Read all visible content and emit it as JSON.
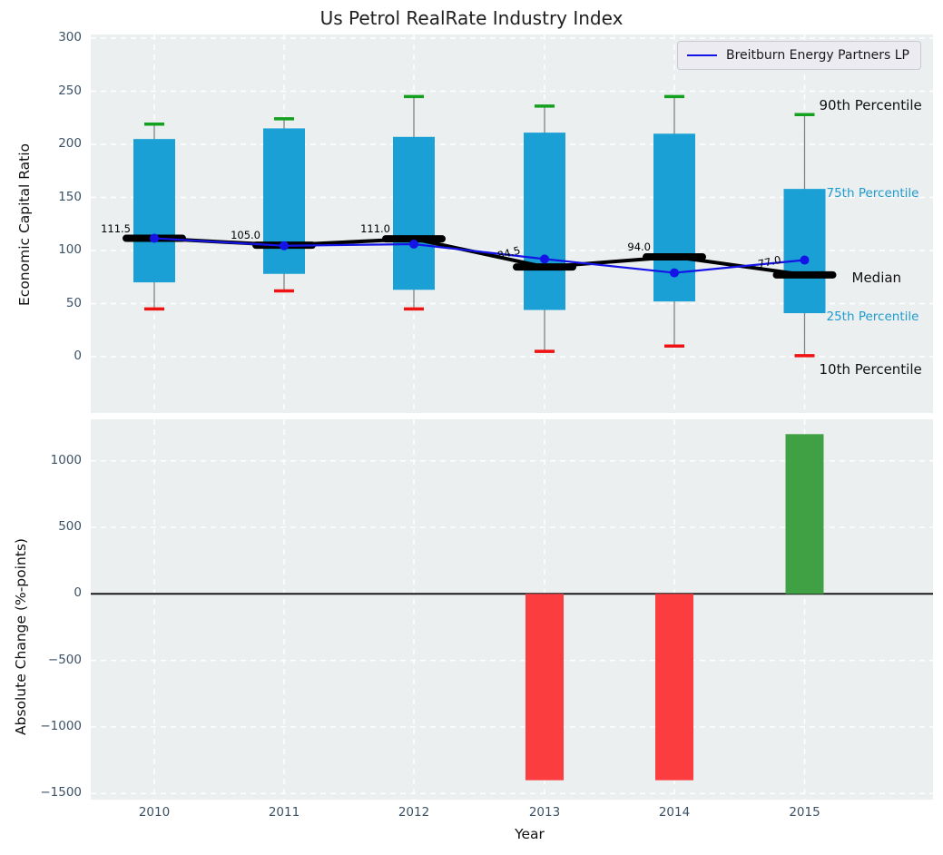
{
  "title": "Us Petrol RealRate Industry Index",
  "legend": {
    "label": "Breitburn Energy Partners LP"
  },
  "axes": {
    "top": {
      "ylabel": "Economic Capital Ratio"
    },
    "bottom": {
      "ylabel": "Absolute Change (%-points)",
      "xlabel": "Year"
    }
  },
  "annotations": {
    "p90": "90th Percentile",
    "p75": "75th Percentile",
    "median": "Median",
    "p25": "25th Percentile",
    "p10": "10th Percentile"
  },
  "colors": {
    "box_fill": "#1AA0D4",
    "median_line": "#000000",
    "company_line": "#1414E6",
    "whisker": "#808080",
    "cap_high": "#12A01E",
    "cap_low": "#F01212",
    "bar_negative": "#FC3D3F",
    "bar_positive": "#3FA143",
    "percentile_label_cyan": "#1E9CCE",
    "axes_bg": "#ECEFF0",
    "grid": "#FFFFFF",
    "tick_label": "#3B5166",
    "zero_line": "#1a1a1a"
  },
  "chart_data": [
    {
      "type": "box",
      "title": "Us Petrol RealRate Industry Index",
      "ylabel": "Economic Capital Ratio",
      "xlabel": "Year",
      "categories": [
        "2010",
        "2011",
        "2012",
        "2013",
        "2014",
        "2015"
      ],
      "ylim": [
        -55,
        308
      ],
      "yticks": [
        0,
        50,
        100,
        150,
        200,
        250,
        300
      ],
      "grid": true,
      "legend_position": "upper right",
      "percentiles": {
        "p10": [
          45,
          62,
          45,
          5,
          10,
          1
        ],
        "p25": [
          70,
          78,
          63,
          44,
          52,
          41
        ],
        "median": [
          111.5,
          105.0,
          111.0,
          84.5,
          94.0,
          77.0
        ],
        "p75": [
          205,
          215,
          207,
          211,
          210,
          158
        ],
        "p90": [
          219,
          224,
          245,
          236,
          245,
          228
        ]
      },
      "median_labels": [
        "111.5",
        "105.0",
        "111.0",
        "84.5",
        "94.0",
        "77.0"
      ],
      "series": [
        {
          "name": "Breitburn Energy Partners LP",
          "values": [
            111.5,
            104.5,
            106,
            92,
            79,
            91
          ]
        }
      ]
    },
    {
      "type": "bar",
      "ylabel": "Absolute Change (%-points)",
      "xlabel": "Year",
      "categories": [
        "2010",
        "2011",
        "2012",
        "2013",
        "2014",
        "2015"
      ],
      "values": [
        0,
        0,
        0,
        -1400,
        -1400,
        1200
      ],
      "ylim": [
        -1560,
        1330
      ],
      "yticks": [
        -1500,
        -1000,
        -500,
        0,
        500,
        1000
      ],
      "grid": true
    }
  ]
}
